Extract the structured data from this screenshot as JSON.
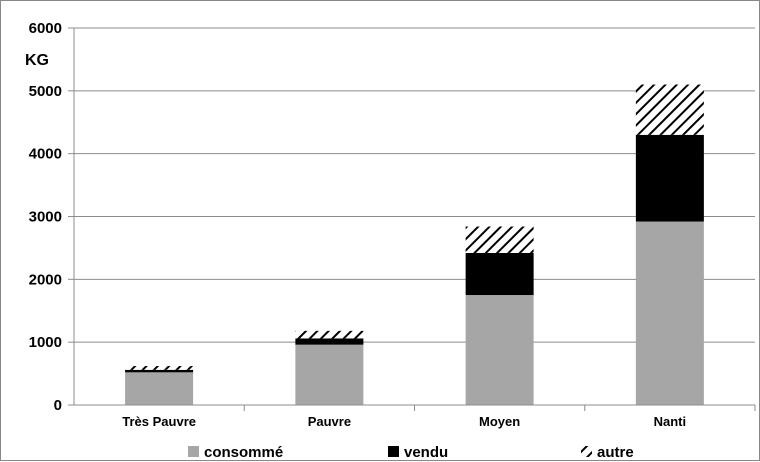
{
  "chart_data": {
    "type": "bar",
    "stacked": true,
    "ylabel": "KG",
    "categories": [
      "Très Pauvre",
      "Pauvre",
      "Moyen",
      "Nanti"
    ],
    "series": [
      {
        "name": "consommé",
        "values": [
          520,
          960,
          1750,
          2920
        ],
        "color": "#A6A6A6",
        "pattern": "solid"
      },
      {
        "name": "vendu",
        "values": [
          40,
          100,
          670,
          1380
        ],
        "color": "#000000",
        "pattern": "solid"
      },
      {
        "name": "autre",
        "values": [
          60,
          120,
          420,
          800
        ],
        "color": "#000000",
        "pattern": "hatch"
      }
    ],
    "ylim": [
      0,
      6000
    ],
    "yticks": [
      0,
      1000,
      2000,
      3000,
      4000,
      5000,
      6000
    ],
    "grid": true,
    "legend_position": "bottom"
  }
}
